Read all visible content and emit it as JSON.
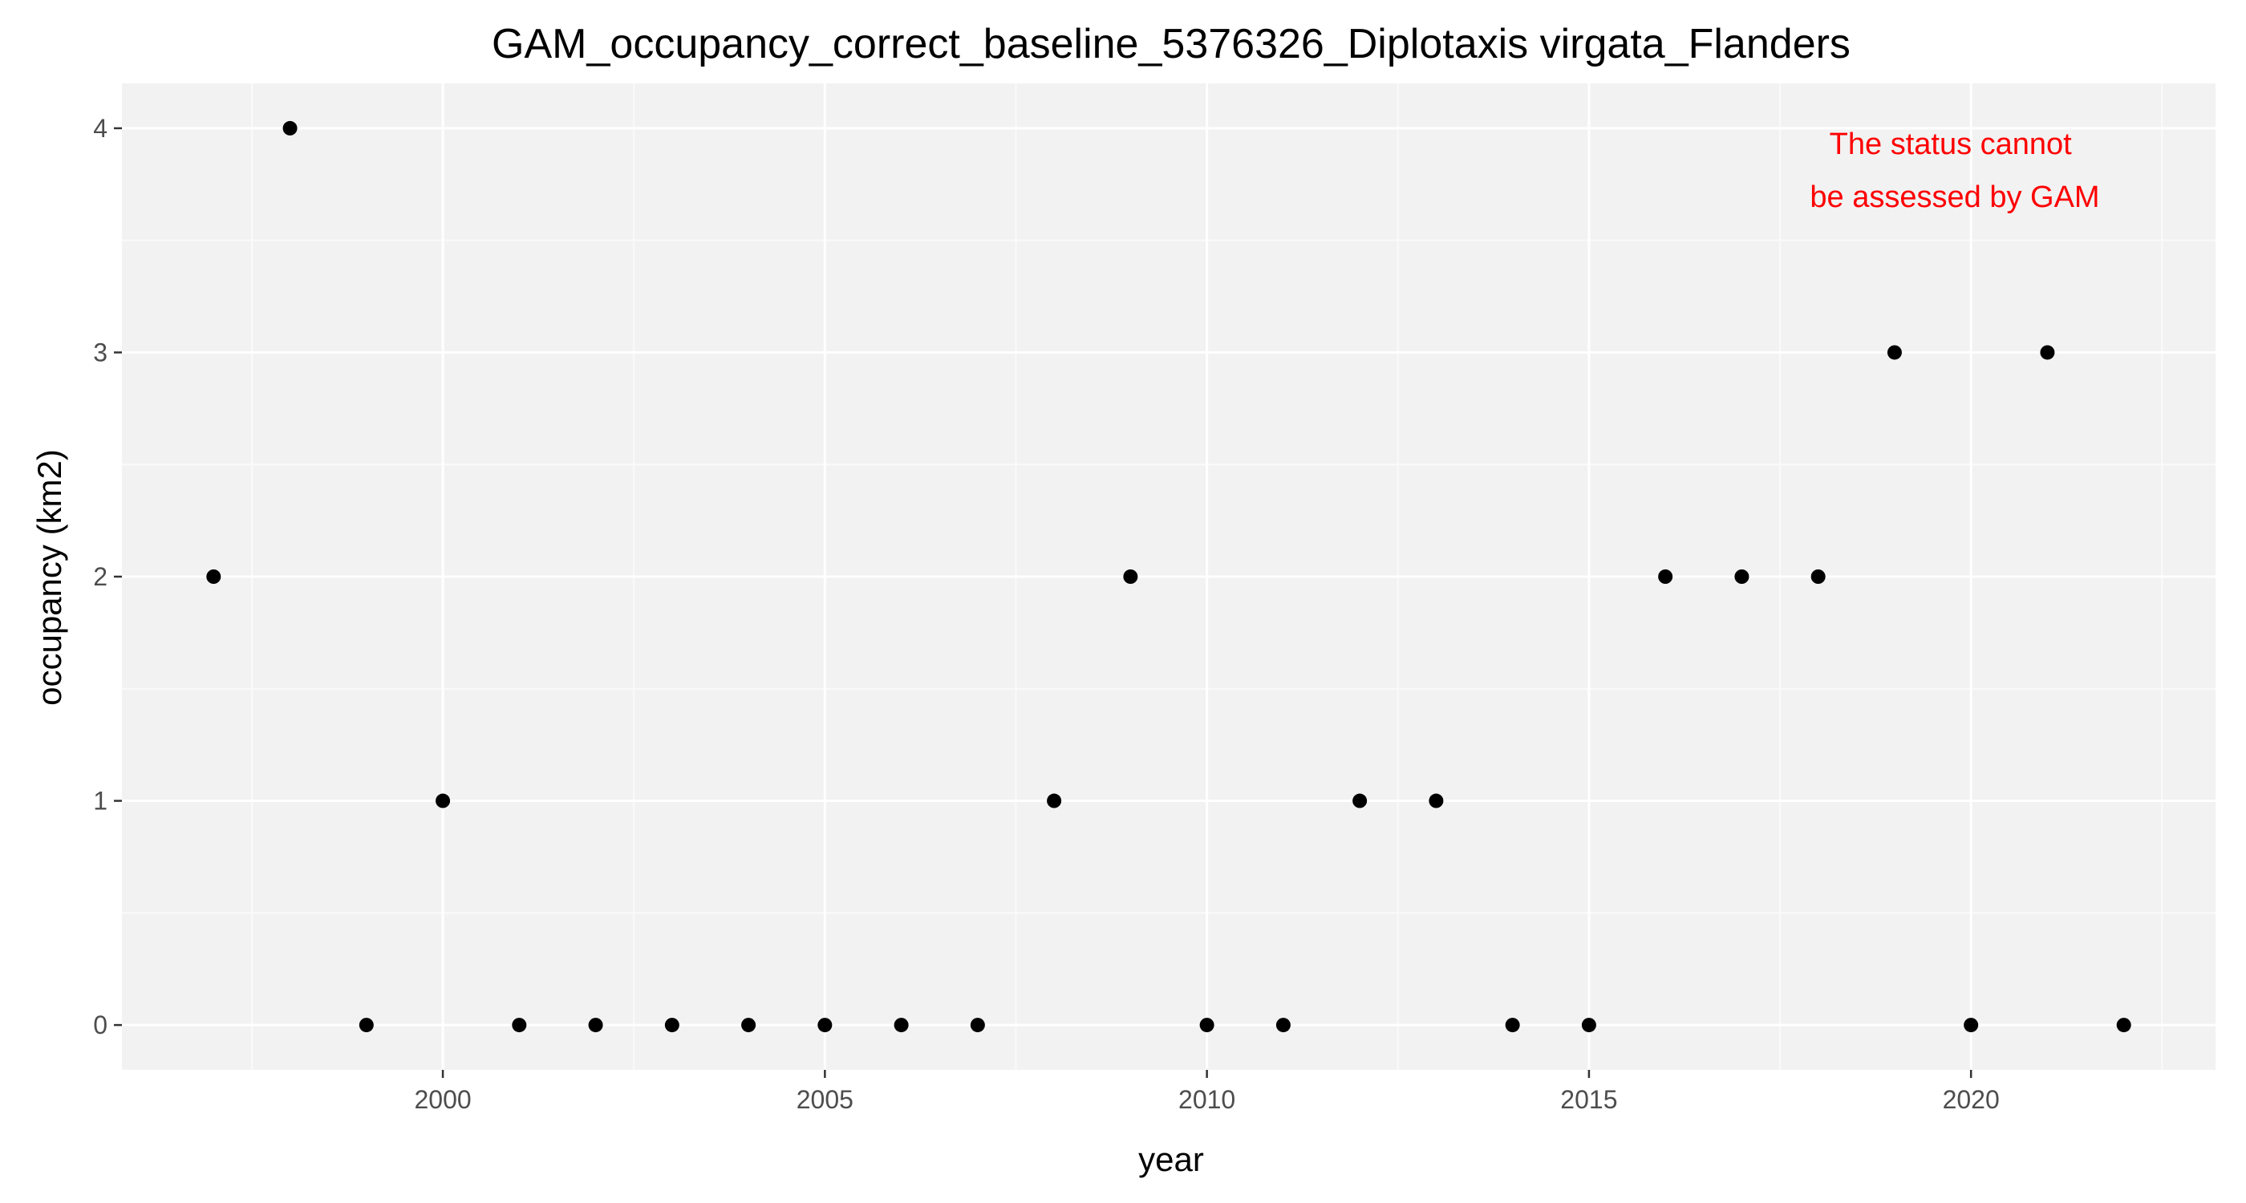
{
  "chart_data": {
    "type": "scatter",
    "title": "GAM_occupancy_correct_baseline_5376326_Diplotaxis virgata_Flanders",
    "xlabel": "year",
    "ylabel": "occupancy (km2)",
    "x": [
      1997,
      1998,
      1999,
      2000,
      2001,
      2002,
      2003,
      2004,
      2005,
      2006,
      2007,
      2008,
      2009,
      2010,
      2011,
      2012,
      2013,
      2014,
      2015,
      2016,
      2017,
      2018,
      2019,
      2020,
      2021,
      2022
    ],
    "y": [
      2,
      4,
      0,
      1,
      0,
      0,
      0,
      0,
      0,
      0,
      0,
      1,
      2,
      0,
      0,
      1,
      1,
      0,
      0,
      2,
      2,
      2,
      3,
      0,
      3,
      0
    ],
    "xlim": [
      1995.8,
      2023.2
    ],
    "ylim": [
      -0.2,
      4.2
    ],
    "x_ticks": [
      2000,
      2005,
      2010,
      2015,
      2020
    ],
    "x_tick_labels": [
      "2000",
      "2005",
      "2010",
      "2015",
      "2020"
    ],
    "x_minor_ticks": [
      1997.5,
      2002.5,
      2007.5,
      2012.5,
      2017.5,
      2022.5
    ],
    "y_ticks": [
      0,
      1,
      2,
      3,
      4
    ],
    "y_tick_labels": [
      "0",
      "1",
      "2",
      "3",
      "4"
    ],
    "y_minor_ticks": [
      0.5,
      1.5,
      2.5,
      3.5
    ],
    "grid": true,
    "legend": "none",
    "annotation": {
      "lines": [
        "The status cannot",
        "be assessed by GAM"
      ],
      "placement": "top-right",
      "color": "#ff0000"
    },
    "colors": {
      "panel_background": "#f2f2f2",
      "grid_major": "#ffffff",
      "grid_minor": "#fafafa",
      "point": "#000000",
      "tick_label": "#4d4d4d",
      "tick_mark": "#333333"
    }
  }
}
